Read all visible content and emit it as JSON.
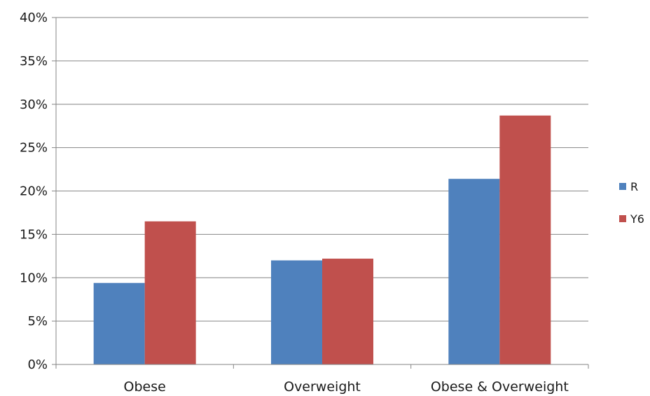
{
  "chart_data": {
    "type": "bar",
    "title": "",
    "xlabel": "",
    "ylabel": "",
    "categories": [
      "Obese",
      "Overweight",
      "Obese & Overweight"
    ],
    "series": [
      {
        "name": "R",
        "color": "#4F81BD",
        "values": [
          9.4,
          12.0,
          21.4
        ]
      },
      {
        "name": "Y6",
        "color": "#C0504D",
        "values": [
          16.5,
          12.2,
          28.7
        ]
      }
    ],
    "ylim": [
      0,
      40
    ],
    "y_ticks": [
      0,
      5,
      10,
      15,
      20,
      25,
      30,
      35,
      40
    ],
    "y_tick_labels": [
      "0%",
      "5%",
      "10%",
      "15%",
      "20%",
      "25%",
      "30%",
      "35%",
      "40%"
    ],
    "grid": true,
    "legend_position": "right"
  }
}
